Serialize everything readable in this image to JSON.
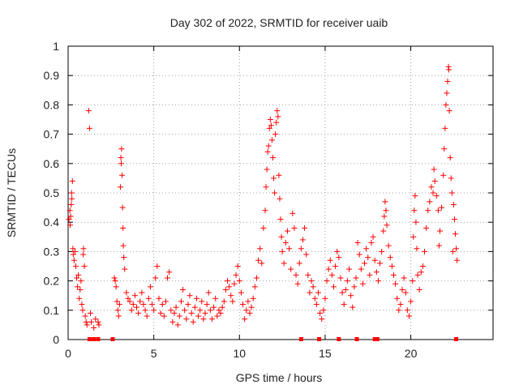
{
  "chart_data": {
    "type": "scatter",
    "title": "Day 302 of 2022, SRMTID for receiver uaib",
    "xlabel": "GPS time / hours",
    "ylabel": "SRMTID / TECUs",
    "xlim": [
      0,
      24.8
    ],
    "ylim": [
      0,
      1
    ],
    "x_ticks": [
      0,
      5,
      10,
      15,
      20
    ],
    "x_tick_labels": [
      "0",
      "5",
      "10",
      "15",
      "20"
    ],
    "y_ticks": [
      0,
      0.1,
      0.2,
      0.3,
      0.4,
      0.5,
      0.6,
      0.7,
      0.8,
      0.9,
      1
    ],
    "y_tick_labels": [
      "0",
      "0.1",
      "0.2",
      "0.3",
      "0.4",
      "0.5",
      "0.6",
      "0.7",
      "0.8",
      "0.9",
      "1"
    ],
    "grid": true,
    "marker": "+",
    "color": "#ff0000",
    "series": [
      {
        "name": "SRMTID",
        "points": [
          [
            0.05,
            0.41
          ],
          [
            0.1,
            0.44
          ],
          [
            0.12,
            0.39
          ],
          [
            0.15,
            0.42
          ],
          [
            0.18,
            0.46
          ],
          [
            0.2,
            0.5
          ],
          [
            0.22,
            0.48
          ],
          [
            0.25,
            0.54
          ],
          [
            0.28,
            0.31
          ],
          [
            0.3,
            0.29
          ],
          [
            0.35,
            0.27
          ],
          [
            0.4,
            0.3
          ],
          [
            0.45,
            0.25
          ],
          [
            0.5,
            0.21
          ],
          [
            0.55,
            0.18
          ],
          [
            0.6,
            0.22
          ],
          [
            0.65,
            0.14
          ],
          [
            0.7,
            0.17
          ],
          [
            0.75,
            0.2
          ],
          [
            0.8,
            0.12
          ],
          [
            0.85,
            0.1
          ],
          [
            0.88,
            0.29
          ],
          [
            0.9,
            0.31
          ],
          [
            0.95,
            0.25
          ],
          [
            1.0,
            0.08
          ],
          [
            1.05,
            0.06
          ],
          [
            1.1,
            0.05
          ],
          [
            1.2,
            0.78
          ],
          [
            1.25,
            0.72
          ],
          [
            1.3,
            0.09
          ],
          [
            1.35,
            0.06
          ],
          [
            1.5,
            0.04
          ],
          [
            1.6,
            0.07
          ],
          [
            1.75,
            0.06
          ],
          [
            1.8,
            0.05
          ],
          [
            2.7,
            0.21
          ],
          [
            2.75,
            0.2
          ],
          [
            2.8,
            0.18
          ],
          [
            2.85,
            0.13
          ],
          [
            2.9,
            0.1
          ],
          [
            2.95,
            0.08
          ],
          [
            3.0,
            0.12
          ],
          [
            3.05,
            0.52
          ],
          [
            3.08,
            0.62
          ],
          [
            3.1,
            0.6
          ],
          [
            3.12,
            0.65
          ],
          [
            3.15,
            0.56
          ],
          [
            3.18,
            0.45
          ],
          [
            3.2,
            0.38
          ],
          [
            3.22,
            0.32
          ],
          [
            3.25,
            0.28
          ],
          [
            3.3,
            0.24
          ],
          [
            3.4,
            0.16
          ],
          [
            3.5,
            0.14
          ],
          [
            3.6,
            0.13
          ],
          [
            3.7,
            0.1
          ],
          [
            3.8,
            0.12
          ],
          [
            3.9,
            0.15
          ],
          [
            4.0,
            0.11
          ],
          [
            4.1,
            0.09
          ],
          [
            4.2,
            0.13
          ],
          [
            4.3,
            0.16
          ],
          [
            4.4,
            0.12
          ],
          [
            4.5,
            0.1
          ],
          [
            4.6,
            0.08
          ],
          [
            4.7,
            0.14
          ],
          [
            4.8,
            0.18
          ],
          [
            4.9,
            0.12
          ],
          [
            5.0,
            0.1
          ],
          [
            5.1,
            0.21
          ],
          [
            5.2,
            0.25
          ],
          [
            5.3,
            0.14
          ],
          [
            5.4,
            0.09
          ],
          [
            5.5,
            0.12
          ],
          [
            5.6,
            0.08
          ],
          [
            5.7,
            0.13
          ],
          [
            5.8,
            0.21
          ],
          [
            5.9,
            0.23
          ],
          [
            6.0,
            0.1
          ],
          [
            6.1,
            0.06
          ],
          [
            6.2,
            0.09
          ],
          [
            6.3,
            0.11
          ],
          [
            6.4,
            0.05
          ],
          [
            6.5,
            0.08
          ],
          [
            6.6,
            0.13
          ],
          [
            6.7,
            0.17
          ],
          [
            6.8,
            0.1
          ],
          [
            6.9,
            0.07
          ],
          [
            7.0,
            0.12
          ],
          [
            7.1,
            0.15
          ],
          [
            7.2,
            0.09
          ],
          [
            7.3,
            0.06
          ],
          [
            7.4,
            0.11
          ],
          [
            7.5,
            0.14
          ],
          [
            7.6,
            0.08
          ],
          [
            7.7,
            0.1
          ],
          [
            7.8,
            0.13
          ],
          [
            7.9,
            0.07
          ],
          [
            8.0,
            0.09
          ],
          [
            8.1,
            0.12
          ],
          [
            8.2,
            0.16
          ],
          [
            8.3,
            0.1
          ],
          [
            8.4,
            0.07
          ],
          [
            8.5,
            0.11
          ],
          [
            8.6,
            0.14
          ],
          [
            8.7,
            0.08
          ],
          [
            8.8,
            0.1
          ],
          [
            8.9,
            0.09
          ],
          [
            9.0,
            0.11
          ],
          [
            9.1,
            0.13
          ],
          [
            9.2,
            0.17
          ],
          [
            9.3,
            0.2
          ],
          [
            9.4,
            0.18
          ],
          [
            9.5,
            0.15
          ],
          [
            9.6,
            0.13
          ],
          [
            9.7,
            0.19
          ],
          [
            9.8,
            0.22
          ],
          [
            9.9,
            0.25
          ],
          [
            10.0,
            0.2
          ],
          [
            10.1,
            0.16
          ],
          [
            10.2,
            0.12
          ],
          [
            10.3,
            0.07
          ],
          [
            10.4,
            0.1
          ],
          [
            10.5,
            0.13
          ],
          [
            10.6,
            0.09
          ],
          [
            10.7,
            0.11
          ],
          [
            10.8,
            0.14
          ],
          [
            10.9,
            0.18
          ],
          [
            11.0,
            0.21
          ],
          [
            11.1,
            0.27
          ],
          [
            11.2,
            0.31
          ],
          [
            11.3,
            0.26
          ],
          [
            11.4,
            0.38
          ],
          [
            11.5,
            0.44
          ],
          [
            11.55,
            0.52
          ],
          [
            11.6,
            0.58
          ],
          [
            11.65,
            0.64
          ],
          [
            11.7,
            0.66
          ],
          [
            11.75,
            0.72
          ],
          [
            11.8,
            0.75
          ],
          [
            11.85,
            0.73
          ],
          [
            11.9,
            0.68
          ],
          [
            11.95,
            0.62
          ],
          [
            12.0,
            0.55
          ],
          [
            12.05,
            0.5
          ],
          [
            12.1,
            0.7
          ],
          [
            12.15,
            0.74
          ],
          [
            12.2,
            0.78
          ],
          [
            12.25,
            0.76
          ],
          [
            12.3,
            0.56
          ],
          [
            12.35,
            0.48
          ],
          [
            12.4,
            0.41
          ],
          [
            12.45,
            0.35
          ],
          [
            12.5,
            0.3
          ],
          [
            12.6,
            0.26
          ],
          [
            12.7,
            0.33
          ],
          [
            12.8,
            0.37
          ],
          [
            12.9,
            0.31
          ],
          [
            13.0,
            0.24
          ],
          [
            13.1,
            0.43
          ],
          [
            13.2,
            0.38
          ],
          [
            13.3,
            0.22
          ],
          [
            13.4,
            0.19
          ],
          [
            13.5,
            0.26
          ],
          [
            13.6,
            0.31
          ],
          [
            13.7,
            0.34
          ],
          [
            13.8,
            0.38
          ],
          [
            13.9,
            0.29
          ],
          [
            14.0,
            0.22
          ],
          [
            14.1,
            0.16
          ],
          [
            14.2,
            0.2
          ],
          [
            14.3,
            0.18
          ],
          [
            14.4,
            0.14
          ],
          [
            14.5,
            0.12
          ],
          [
            14.6,
            0.16
          ],
          [
            14.7,
            0.09
          ],
          [
            14.8,
            0.07
          ],
          [
            14.9,
            0.1
          ],
          [
            15.0,
            0.14
          ],
          [
            15.1,
            0.2
          ],
          [
            15.2,
            0.24
          ],
          [
            15.3,
            0.27
          ],
          [
            15.4,
            0.22
          ],
          [
            15.5,
            0.18
          ],
          [
            15.6,
            0.25
          ],
          [
            15.7,
            0.3
          ],
          [
            15.8,
            0.28
          ],
          [
            15.9,
            0.21
          ],
          [
            16.0,
            0.16
          ],
          [
            16.1,
            0.12
          ],
          [
            16.2,
            0.17
          ],
          [
            16.3,
            0.2
          ],
          [
            16.4,
            0.24
          ],
          [
            16.5,
            0.15
          ],
          [
            16.6,
            0.11
          ],
          [
            16.7,
            0.18
          ],
          [
            16.8,
            0.21
          ],
          [
            16.9,
            0.33
          ],
          [
            17.0,
            0.29
          ],
          [
            17.1,
            0.24
          ],
          [
            17.2,
            0.19
          ],
          [
            17.3,
            0.26
          ],
          [
            17.4,
            0.31
          ],
          [
            17.5,
            0.28
          ],
          [
            17.6,
            0.22
          ],
          [
            17.7,
            0.33
          ],
          [
            17.8,
            0.35
          ],
          [
            17.9,
            0.27
          ],
          [
            18.0,
            0.23
          ],
          [
            18.1,
            0.2
          ],
          [
            18.2,
            0.26
          ],
          [
            18.3,
            0.3
          ],
          [
            18.4,
            0.37
          ],
          [
            18.45,
            0.42
          ],
          [
            18.5,
            0.47
          ],
          [
            18.55,
            0.44
          ],
          [
            18.6,
            0.39
          ],
          [
            18.7,
            0.32
          ],
          [
            18.8,
            0.28
          ],
          [
            18.9,
            0.25
          ],
          [
            19.0,
            0.22
          ],
          [
            19.1,
            0.19
          ],
          [
            19.2,
            0.14
          ],
          [
            19.3,
            0.1
          ],
          [
            19.4,
            0.12
          ],
          [
            19.5,
            0.17
          ],
          [
            19.6,
            0.21
          ],
          [
            19.7,
            0.16
          ],
          [
            19.8,
            0.1
          ],
          [
            19.9,
            0.08
          ],
          [
            20.0,
            0.13
          ],
          [
            20.1,
            0.2
          ],
          [
            20.15,
            0.35
          ],
          [
            20.2,
            0.44
          ],
          [
            20.25,
            0.49
          ],
          [
            20.3,
            0.4
          ],
          [
            20.35,
            0.31
          ],
          [
            20.4,
            0.22
          ],
          [
            20.5,
            0.17
          ],
          [
            20.6,
            0.23
          ],
          [
            20.7,
            0.25
          ],
          [
            20.8,
            0.3
          ],
          [
            20.9,
            0.38
          ],
          [
            21.0,
            0.44
          ],
          [
            21.1,
            0.47
          ],
          [
            21.2,
            0.52
          ],
          [
            21.3,
            0.5
          ],
          [
            21.35,
            0.58
          ],
          [
            21.4,
            0.54
          ],
          [
            21.5,
            0.49
          ],
          [
            21.6,
            0.44
          ],
          [
            21.65,
            0.32
          ],
          [
            21.7,
            0.37
          ],
          [
            21.8,
            0.45
          ],
          [
            21.9,
            0.56
          ],
          [
            21.95,
            0.65
          ],
          [
            22.0,
            0.72
          ],
          [
            22.05,
            0.8
          ],
          [
            22.1,
            0.84
          ],
          [
            22.15,
            0.88
          ],
          [
            22.2,
            0.93
          ],
          [
            22.22,
            0.92
          ],
          [
            22.25,
            0.78
          ],
          [
            22.3,
            0.62
          ],
          [
            22.35,
            0.55
          ],
          [
            22.4,
            0.5
          ],
          [
            22.45,
            0.3
          ],
          [
            22.5,
            0.46
          ],
          [
            22.55,
            0.41
          ],
          [
            22.6,
            0.36
          ],
          [
            22.65,
            0.31
          ],
          [
            22.7,
            0.27
          ]
        ]
      }
    ],
    "zero_markers_x": [
      1.25,
      1.5,
      1.75,
      2.6,
      13.6,
      14.65,
      15.8,
      16.85,
      17.9,
      18.05,
      22.65
    ]
  }
}
